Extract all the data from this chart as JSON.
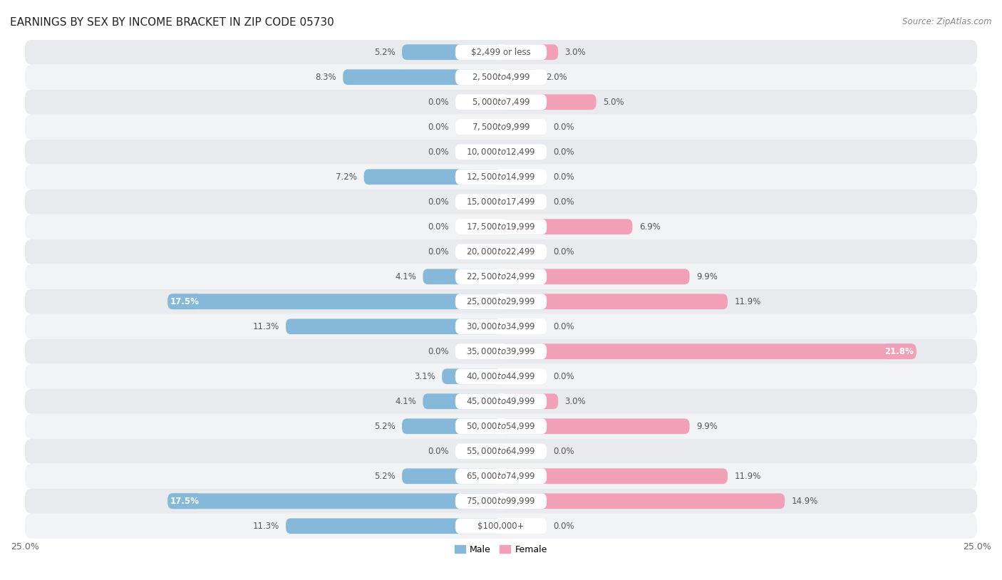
{
  "title": "EARNINGS BY SEX BY INCOME BRACKET IN ZIP CODE 05730",
  "source": "Source: ZipAtlas.com",
  "categories": [
    "$2,499 or less",
    "$2,500 to $4,999",
    "$5,000 to $7,499",
    "$7,500 to $9,999",
    "$10,000 to $12,499",
    "$12,500 to $14,999",
    "$15,000 to $17,499",
    "$17,500 to $19,999",
    "$20,000 to $22,499",
    "$22,500 to $24,999",
    "$25,000 to $29,999",
    "$30,000 to $34,999",
    "$35,000 to $39,999",
    "$40,000 to $44,999",
    "$45,000 to $49,999",
    "$50,000 to $54,999",
    "$55,000 to $64,999",
    "$65,000 to $74,999",
    "$75,000 to $99,999",
    "$100,000+"
  ],
  "male_values": [
    5.2,
    8.3,
    0.0,
    0.0,
    0.0,
    7.2,
    0.0,
    0.0,
    0.0,
    4.1,
    17.5,
    11.3,
    0.0,
    3.1,
    4.1,
    5.2,
    0.0,
    5.2,
    17.5,
    11.3
  ],
  "female_values": [
    3.0,
    2.0,
    5.0,
    0.0,
    0.0,
    0.0,
    0.0,
    6.9,
    0.0,
    9.9,
    11.9,
    0.0,
    21.8,
    0.0,
    3.0,
    9.9,
    0.0,
    11.9,
    14.9,
    0.0
  ],
  "male_color": "#85b8d9",
  "female_color": "#f2a0b8",
  "male_label": "Male",
  "female_label": "Female",
  "xlim": 25.0,
  "row_color_even": "#e8eaed",
  "row_color_odd": "#f2f3f5",
  "title_fontsize": 11,
  "axis_fontsize": 9,
  "label_fontsize": 8.5,
  "value_label_fontsize": 8.5
}
